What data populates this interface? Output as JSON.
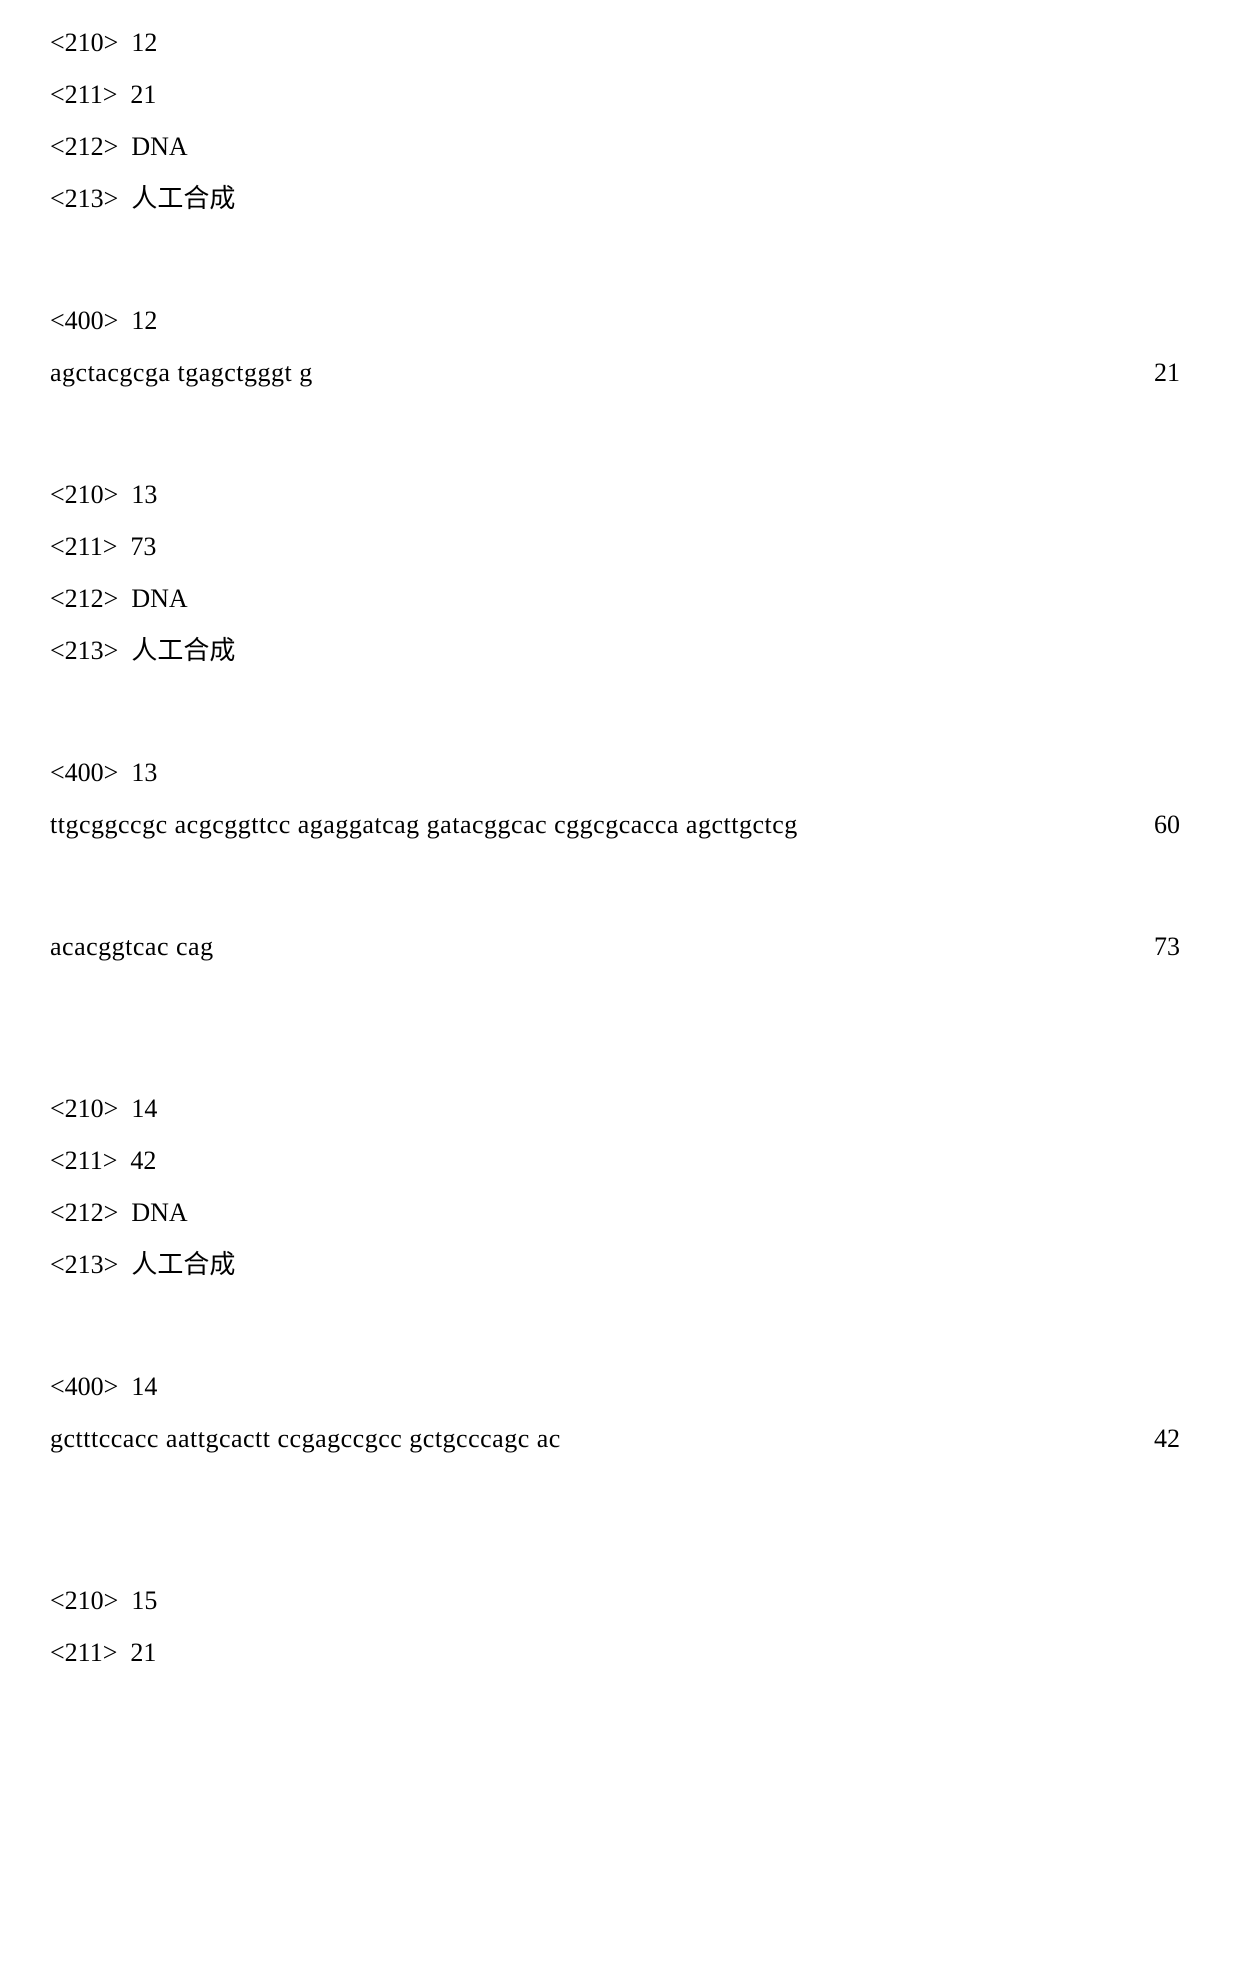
{
  "entries": [
    {
      "header": [
        {
          "tag": "<210>",
          "val": "12"
        },
        {
          "tag": "<211>",
          "val": "21"
        },
        {
          "tag": "<212>",
          "val": "DNA"
        },
        {
          "tag": "<213>",
          "val": "人工合成"
        }
      ],
      "seqtag": {
        "tag": "<400>",
        "val": "12"
      },
      "seqs": [
        {
          "text": "agctacgcga tgagctgggt g",
          "count": "21"
        }
      ]
    },
    {
      "header": [
        {
          "tag": "<210>",
          "val": "13"
        },
        {
          "tag": "<211>",
          "val": "73"
        },
        {
          "tag": "<212>",
          "val": "DNA"
        },
        {
          "tag": "<213>",
          "val": "人工合成"
        }
      ],
      "seqtag": {
        "tag": "<400>",
        "val": "13"
      },
      "seqs": [
        {
          "text": "ttgcggccgc acgcggttcc agaggatcag gatacggcac cggcgcacca agcttgctcg",
          "count": "60"
        },
        {
          "text": "acacggtcac cag",
          "count": "73"
        }
      ]
    },
    {
      "header": [
        {
          "tag": "<210>",
          "val": "14"
        },
        {
          "tag": "<211>",
          "val": "42"
        },
        {
          "tag": "<212>",
          "val": "DNA"
        },
        {
          "tag": "<213>",
          "val": "人工合成"
        }
      ],
      "seqtag": {
        "tag": "<400>",
        "val": "14"
      },
      "seqs": [
        {
          "text": "gctttccacc aattgcactt ccgagccgcc gctgcccagc ac",
          "count": "42"
        }
      ]
    },
    {
      "header": [
        {
          "tag": "<210>",
          "val": "15"
        },
        {
          "tag": "<211>",
          "val": "21"
        }
      ]
    }
  ]
}
